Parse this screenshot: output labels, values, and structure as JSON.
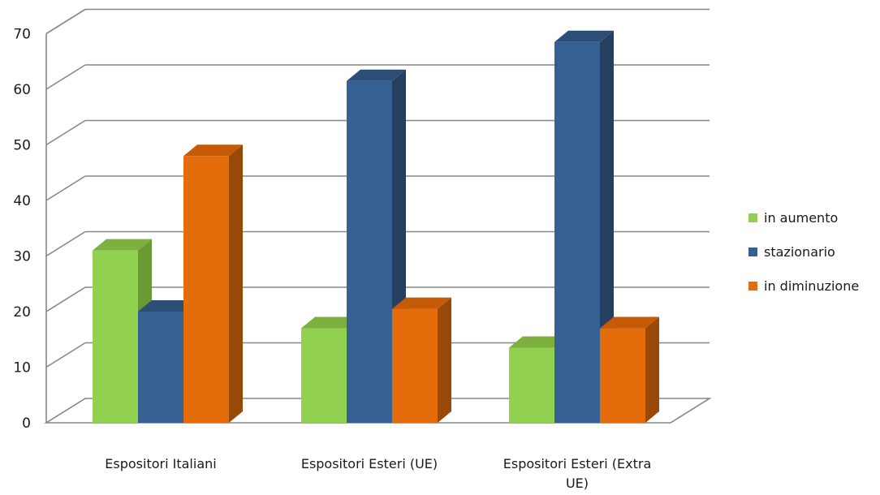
{
  "chart_data": {
    "type": "bar",
    "title": "",
    "xlabel": "",
    "ylabel": "",
    "ylim": [
      0,
      70
    ],
    "yticks": [
      0,
      10,
      20,
      30,
      40,
      50,
      60,
      70
    ],
    "grid": true,
    "legend_position": "right",
    "categories": [
      [
        "Espositori Italiani"
      ],
      [
        "Espositori Esteri (UE)"
      ],
      [
        "Espositori Esteri (Extra",
        "UE)"
      ]
    ],
    "series": [
      {
        "name": "in aumento",
        "values": [
          31,
          17,
          13.5
        ],
        "color": "#92D050",
        "color_side": "#6A9A34",
        "color_top": "#7DB03F"
      },
      {
        "name": "stazionario",
        "values": [
          20,
          61.5,
          68.5
        ],
        "color": "#376092",
        "color_side": "#243F60",
        "color_top": "#2C4D75"
      },
      {
        "name": "in diminuzione",
        "values": [
          48,
          20.5,
          17
        ],
        "color": "#E46C0A",
        "color_side": "#984807",
        "color_top": "#C55A07"
      }
    ]
  }
}
